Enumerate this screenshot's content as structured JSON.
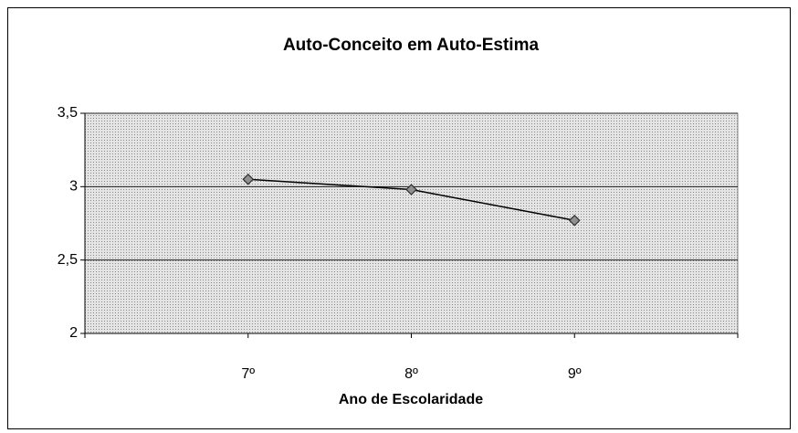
{
  "chart_data": {
    "type": "line",
    "title": "Auto-Conceito em Auto-Estima",
    "x_label": "Ano de Escolaridade",
    "categories": [
      null,
      "7º",
      "8º",
      "9º",
      null
    ],
    "values": [
      null,
      3.05,
      2.98,
      2.77,
      null
    ],
    "color": "#000000",
    "marker_color": "#909090",
    "ylim": [
      2,
      3.5
    ],
    "yticks": [
      2,
      {
        "value": 2.5,
        "label": "2,5"
      },
      3,
      {
        "value": 3.5,
        "label": "3,5"
      }
    ],
    "grid": true
  }
}
